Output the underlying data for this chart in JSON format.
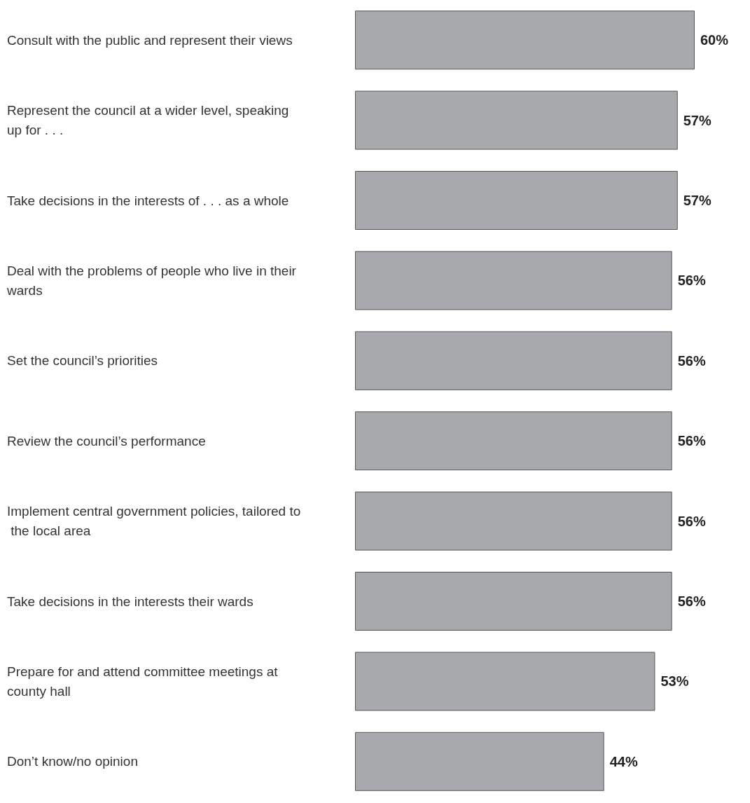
{
  "chart_data": {
    "type": "bar",
    "orientation": "horizontal",
    "categories": [
      "Consult with the public and represent their views",
      "Represent the council at a wider level, speaking up for . . .",
      "Take decisions in the interests of . . . as a whole",
      "Deal with the problems of people who live in their wards",
      "Set the council’s priorities",
      "Review the council’s performance",
      "Implement central government policies, tailored to the local area",
      "Take decisions in the interests their wards",
      "Prepare for and attend committee meetings at county hall",
      "Don’t know/no opinion"
    ],
    "values": [
      60,
      57,
      57,
      56,
      56,
      56,
      56,
      56,
      53,
      44
    ],
    "value_labels": [
      "60%",
      "57%",
      "57%",
      "56%",
      "56%",
      "56%",
      "56%",
      "56%",
      "53%",
      "44%"
    ],
    "color": "#a7a9ac"
  }
}
